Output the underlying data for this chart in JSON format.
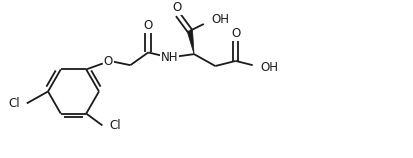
{
  "bg_color": "#ffffff",
  "line_color": "#1a1a1a",
  "line_width": 1.3,
  "font_size": 8.5,
  "fig_width": 4.14,
  "fig_height": 1.58,
  "dpi": 100,
  "xlim": [
    0,
    9.5
  ],
  "ylim": [
    0,
    3.6
  ]
}
